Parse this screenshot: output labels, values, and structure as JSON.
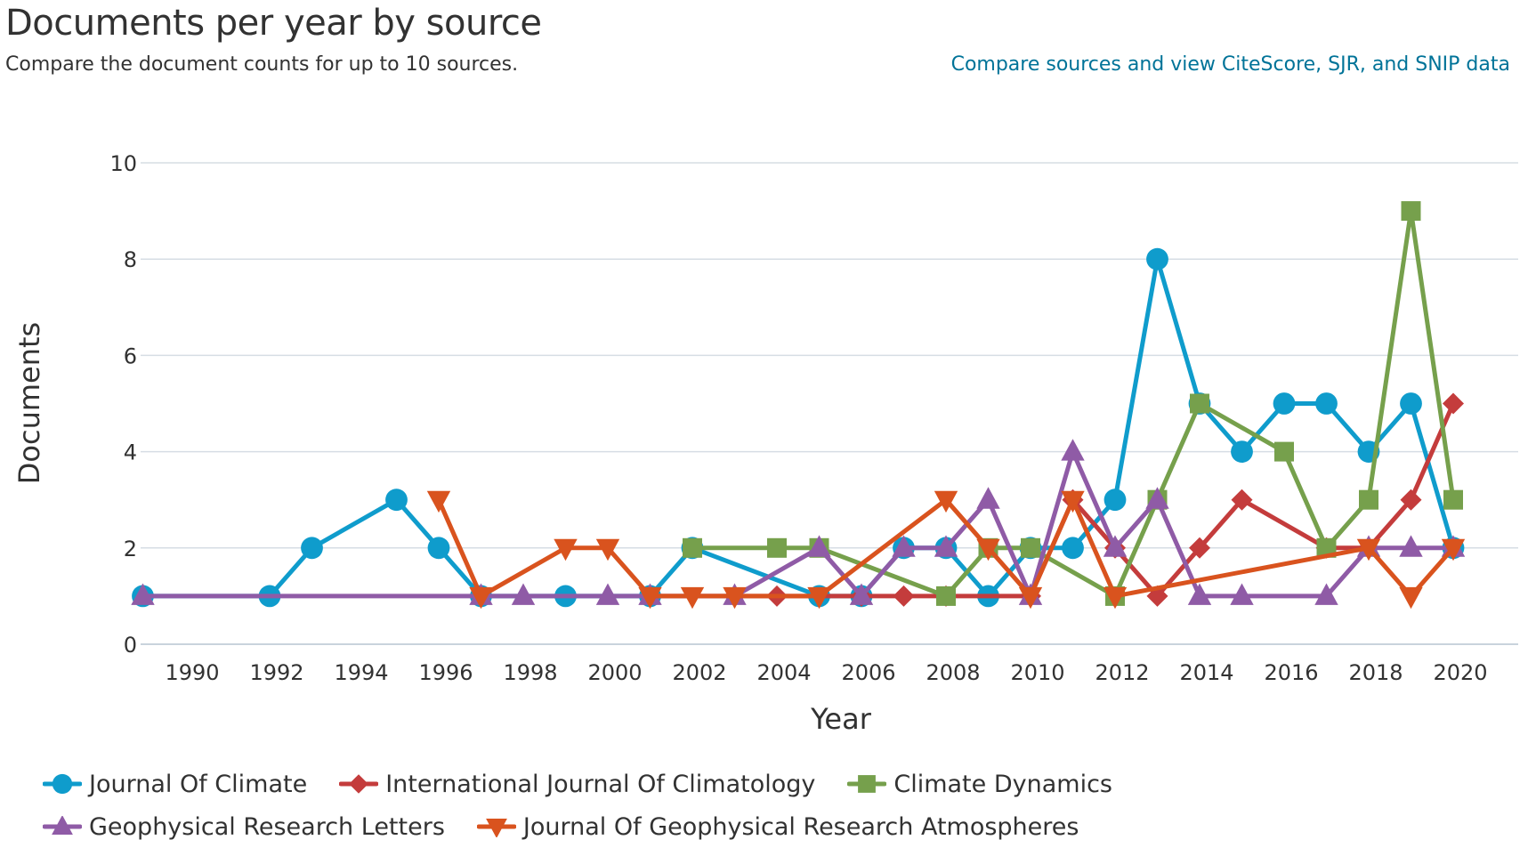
{
  "header": {
    "title": "Documents per year by source",
    "subtitle": "Compare the document counts for up to 10 sources.",
    "compare_link": "Compare sources and view CiteScore, SJR, and SNIP data"
  },
  "chart_data": {
    "type": "line",
    "title": "Documents per year by source",
    "xlabel": "Year",
    "ylabel": "Documents",
    "xlim": [
      1989,
      2020
    ],
    "ylim": [
      0,
      10
    ],
    "x_ticks": [
      1990,
      1992,
      1994,
      1996,
      1998,
      2000,
      2002,
      2004,
      2006,
      2008,
      2010,
      2012,
      2014,
      2016,
      2018,
      2020
    ],
    "y_ticks": [
      0,
      2,
      4,
      6,
      8,
      10
    ],
    "grid": "horizontal",
    "legend_position": "bottom",
    "series": [
      {
        "name": "Journal Of Climate",
        "color": "#0f9ccc",
        "marker": "circle",
        "points": [
          [
            1989,
            1
          ],
          [
            1992,
            1
          ],
          [
            1993,
            2
          ],
          [
            1995,
            3
          ],
          [
            1996,
            2
          ],
          [
            1997,
            1
          ],
          [
            1999,
            1
          ],
          [
            2001,
            1
          ],
          [
            2002,
            2
          ],
          [
            2005,
            1
          ],
          [
            2006,
            1
          ],
          [
            2007,
            2
          ],
          [
            2008,
            2
          ],
          [
            2009,
            1
          ],
          [
            2010,
            2
          ],
          [
            2011,
            2
          ],
          [
            2012,
            3
          ],
          [
            2013,
            8
          ],
          [
            2014,
            5
          ],
          [
            2015,
            4
          ],
          [
            2016,
            5
          ],
          [
            2017,
            5
          ],
          [
            2018,
            4
          ],
          [
            2019,
            5
          ],
          [
            2020,
            2
          ]
        ]
      },
      {
        "name": "International Journal Of Climatology",
        "color": "#c43c3c",
        "marker": "diamond",
        "points": [
          [
            2001,
            1
          ],
          [
            2003,
            1
          ],
          [
            2004,
            1
          ],
          [
            2006,
            1
          ],
          [
            2007,
            1
          ],
          [
            2008,
            1
          ],
          [
            2010,
            1
          ],
          [
            2011,
            3
          ],
          [
            2012,
            2
          ],
          [
            2013,
            1
          ],
          [
            2014,
            2
          ],
          [
            2015,
            3
          ],
          [
            2017,
            2
          ],
          [
            2018,
            2
          ],
          [
            2019,
            3
          ],
          [
            2020,
            5
          ]
        ]
      },
      {
        "name": "Climate Dynamics",
        "color": "#76a04c",
        "marker": "square",
        "points": [
          [
            2002,
            2
          ],
          [
            2004,
            2
          ],
          [
            2005,
            2
          ],
          [
            2008,
            1
          ],
          [
            2009,
            2
          ],
          [
            2010,
            2
          ],
          [
            2012,
            1
          ],
          [
            2013,
            3
          ],
          [
            2014,
            5
          ],
          [
            2016,
            4
          ],
          [
            2017,
            2
          ],
          [
            2018,
            3
          ],
          [
            2019,
            9
          ],
          [
            2020,
            3
          ]
        ]
      },
      {
        "name": "Geophysical Research Letters",
        "color": "#8f5ba6",
        "marker": "triangle-up",
        "points": [
          [
            1989,
            1
          ],
          [
            1997,
            1
          ],
          [
            1998,
            1
          ],
          [
            2000,
            1
          ],
          [
            2001,
            1
          ],
          [
            2003,
            1
          ],
          [
            2005,
            2
          ],
          [
            2006,
            1
          ],
          [
            2007,
            2
          ],
          [
            2008,
            2
          ],
          [
            2009,
            3
          ],
          [
            2010,
            1
          ],
          [
            2011,
            4
          ],
          [
            2012,
            2
          ],
          [
            2013,
            3
          ],
          [
            2014,
            1
          ],
          [
            2015,
            1
          ],
          [
            2017,
            1
          ],
          [
            2018,
            2
          ],
          [
            2019,
            2
          ],
          [
            2020,
            2
          ]
        ]
      },
      {
        "name": "Journal Of Geophysical Research Atmospheres",
        "color": "#d9531e",
        "marker": "triangle-down",
        "points": [
          [
            1996,
            3
          ],
          [
            1997,
            1
          ],
          [
            1999,
            2
          ],
          [
            2000,
            2
          ],
          [
            2001,
            1
          ],
          [
            2002,
            1
          ],
          [
            2003,
            1
          ],
          [
            2005,
            1
          ],
          [
            2008,
            3
          ],
          [
            2009,
            2
          ],
          [
            2010,
            1
          ],
          [
            2011,
            3
          ],
          [
            2012,
            1
          ],
          [
            2018,
            2
          ],
          [
            2019,
            1
          ],
          [
            2020,
            2
          ]
        ]
      }
    ]
  },
  "legend": {
    "rows": [
      [
        0,
        1,
        2
      ],
      [
        3,
        4
      ]
    ]
  }
}
